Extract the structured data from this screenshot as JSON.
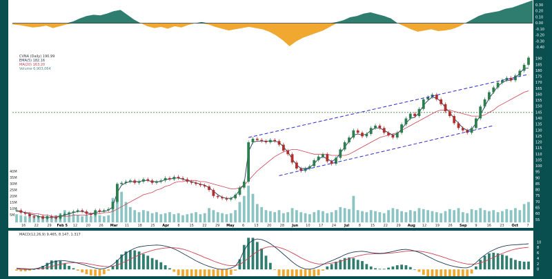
{
  "colors": {
    "frame": "#0a4f4f",
    "panel": "#ffffff",
    "oscPos": "#2e7d6e",
    "oscNeg": "#f0a830",
    "candleUp": "#2e7d4f",
    "candleDown": "#b03030",
    "ema": "#1f3a5a",
    "ma": "#d04050",
    "channel": "#2a2ad0",
    "volume": "#78b8b8",
    "macdLine": "#1f3a5a",
    "signalLine": "#d04050",
    "histPos": "#2e7d6e",
    "histNeg": "#f0a830"
  },
  "chart_data": [
    {
      "panel": "oscillator",
      "type": "area",
      "ylim": [
        -0.45,
        0.35
      ],
      "yticks": [
        "0.30",
        "0.20",
        "0.10",
        "0.00",
        "-0.10",
        "-0.20",
        "-0.30",
        "-0.40"
      ],
      "values": [
        -0.02,
        -0.03,
        -0.05,
        -0.07,
        -0.06,
        -0.04,
        -0.08,
        -0.05,
        -0.02,
        0.03,
        0.08,
        0.12,
        0.14,
        0.13,
        0.16,
        0.2,
        0.22,
        0.14,
        0.06,
        0.0,
        -0.05,
        -0.08,
        -0.06,
        -0.09,
        -0.05,
        -0.07,
        -0.03,
        0.0,
        0.02,
        -0.02,
        -0.06,
        -0.09,
        -0.12,
        -0.1,
        -0.08,
        -0.06,
        -0.08,
        -0.1,
        -0.14,
        -0.2,
        -0.28,
        -0.38,
        -0.3,
        -0.24,
        -0.2,
        -0.16,
        -0.12,
        -0.06,
        0.02,
        0.05,
        0.1,
        0.12,
        0.16,
        0.18,
        0.15,
        0.12,
        0.08,
        0.0,
        -0.05,
        -0.1,
        -0.14,
        -0.12,
        -0.1,
        -0.13,
        -0.12,
        -0.1,
        -0.06,
        0.0,
        0.06,
        0.12,
        0.16,
        0.18,
        0.2,
        0.24,
        0.26,
        0.3,
        0.34,
        0.38
      ]
    },
    {
      "panel": "price",
      "type": "candlestick",
      "legend": [
        "CVNA (Daily) 190.99",
        "EMA(5) 182.16",
        "MA(20) 163.20",
        "Volume 6,903,064"
      ],
      "ylim": [
        54,
        193
      ],
      "yticks": [
        "190",
        "185",
        "180",
        "175",
        "170",
        "165",
        "160",
        "155",
        "150",
        "145",
        "140",
        "135",
        "130",
        "125",
        "120",
        "115",
        "110",
        "105",
        "100",
        "95",
        "90",
        "85",
        "80",
        "75",
        "70",
        "65",
        "60",
        "55"
      ],
      "volume_ticks": [
        "40M",
        "35M",
        "30M",
        "25M",
        "20M",
        "15M",
        "10M",
        "5M"
      ],
      "x_labels": [
        "16",
        "22",
        "29",
        "Feb 5",
        "12",
        "20",
        "26",
        "Mar",
        "11",
        "18",
        "25",
        "Apr",
        "8",
        "15",
        "22",
        "29",
        "May",
        "6",
        "13",
        "20",
        "28",
        "Jun",
        "10",
        "17",
        "24",
        "Jul",
        "8",
        "15",
        "22",
        "29",
        "Aug",
        "12",
        "19",
        "26",
        "Sep",
        "9",
        "16",
        "23",
        "Oct",
        "7"
      ],
      "x_label_kinds": [
        "d",
        "d",
        "d",
        "m",
        "d",
        "d",
        "d",
        "m",
        "d",
        "d",
        "d",
        "m",
        "d",
        "d",
        "d",
        "d",
        "m",
        "d",
        "d",
        "d",
        "d",
        "m",
        "d",
        "d",
        "d",
        "m",
        "d",
        "d",
        "d",
        "d",
        "m",
        "d",
        "d",
        "d",
        "m",
        "d",
        "d",
        "d",
        "m",
        "d"
      ],
      "reference_level": 145,
      "closes": [
        63,
        61,
        60,
        58,
        57,
        58,
        56,
        58,
        57,
        56,
        59,
        60,
        61,
        62,
        63,
        62,
        60,
        59,
        63,
        62,
        63,
        64,
        70,
        85,
        86,
        87,
        88,
        86,
        87,
        89,
        88,
        86,
        87,
        88,
        90,
        89,
        91,
        90,
        89,
        87,
        86,
        85,
        84,
        83,
        80,
        75,
        74,
        73,
        72,
        73,
        76,
        82,
        87,
        120,
        123,
        122,
        121,
        120,
        122,
        121,
        118,
        113,
        110,
        103,
        98,
        96,
        98,
        100,
        105,
        108,
        110,
        104,
        102,
        107,
        114,
        120,
        124,
        130,
        128,
        125,
        127,
        132,
        134,
        132,
        128,
        126,
        124,
        128,
        135,
        140,
        144,
        142,
        148,
        156,
        158,
        160,
        156,
        152,
        146,
        142,
        136,
        132,
        130,
        128,
        132,
        140,
        150,
        156,
        162,
        166,
        170,
        172,
        174,
        172,
        176,
        180,
        185,
        190.99
      ],
      "ema5": [
        63,
        62,
        61,
        60,
        59,
        58,
        57,
        57,
        57,
        57,
        58,
        59,
        60,
        61,
        62,
        62,
        61,
        60,
        61,
        62,
        62,
        63,
        66,
        78,
        84,
        86,
        87,
        87,
        87,
        88,
        88,
        87,
        87,
        87,
        89,
        89,
        90,
        90,
        89,
        88,
        87,
        86,
        85,
        84,
        82,
        79,
        76,
        74,
        73,
        73,
        75,
        80,
        85,
        112,
        120,
        121,
        121,
        121,
        121,
        121,
        120,
        116,
        112,
        106,
        101,
        98,
        98,
        99,
        102,
        106,
        108,
        106,
        104,
        106,
        111,
        116,
        121,
        126,
        127,
        126,
        127,
        130,
        132,
        132,
        130,
        128,
        126,
        127,
        131,
        136,
        140,
        141,
        145,
        151,
        155,
        158,
        157,
        154,
        149,
        145,
        140,
        136,
        132,
        130,
        131,
        136,
        143,
        150,
        157,
        162,
        167,
        170,
        172,
        172,
        174,
        178,
        182,
        182.16
      ],
      "ma20": [
        62,
        62,
        61,
        61,
        60,
        60,
        59,
        59,
        58,
        58,
        58,
        58,
        58,
        59,
        59,
        59,
        59,
        60,
        60,
        60,
        61,
        61,
        62,
        64,
        66,
        68,
        70,
        72,
        74,
        76,
        77,
        78,
        80,
        81,
        83,
        84,
        86,
        87,
        87,
        88,
        88,
        88,
        87,
        87,
        86,
        85,
        84,
        83,
        82,
        81,
        81,
        82,
        84,
        88,
        92,
        96,
        99,
        102,
        105,
        108,
        110,
        112,
        113,
        114,
        114,
        113,
        112,
        111,
        110,
        110,
        110,
        110,
        109,
        109,
        109,
        109,
        110,
        112,
        114,
        116,
        118,
        120,
        122,
        124,
        125,
        126,
        127,
        128,
        130,
        132,
        134,
        136,
        138,
        140,
        142,
        144,
        146,
        147,
        147,
        147,
        146,
        145,
        144,
        143,
        142,
        142,
        142,
        143,
        145,
        147,
        150,
        152,
        154,
        156,
        158,
        160,
        162,
        163.2
      ],
      "volume_m": [
        8,
        7,
        6,
        6,
        5,
        6,
        5,
        6,
        5,
        7,
        9,
        12,
        10,
        8,
        7,
        6,
        7,
        6,
        8,
        7,
        6,
        7,
        24,
        38,
        30,
        20,
        15,
        12,
        10,
        12,
        11,
        9,
        10,
        8,
        9,
        10,
        8,
        9,
        7,
        8,
        9,
        10,
        8,
        9,
        14,
        12,
        10,
        9,
        8,
        9,
        12,
        20,
        26,
        36,
        28,
        18,
        15,
        12,
        11,
        10,
        12,
        9,
        10,
        14,
        12,
        10,
        9,
        8,
        10,
        12,
        11,
        9,
        10,
        12,
        15,
        14,
        13,
        26,
        12,
        11,
        10,
        12,
        11,
        10,
        9,
        12,
        14,
        13,
        11,
        10,
        12,
        11,
        14,
        13,
        12,
        11,
        10,
        9,
        11,
        13,
        12,
        14,
        10,
        9,
        13,
        12,
        14,
        12,
        11,
        12,
        10,
        11,
        13,
        12,
        14,
        12,
        18,
        20
      ]
    },
    {
      "panel": "macd",
      "type": "line",
      "legend": "MACD(12,26,9) 9.465, 8.147, 1.317",
      "ylim": [
        -2,
        12
      ],
      "yticks": [
        "10",
        "8",
        "6",
        "4",
        "2",
        "0"
      ],
      "macd": [
        0.3,
        0.1,
        0.0,
        0.0,
        0.2,
        0.5,
        1.0,
        1.8,
        2.6,
        3.0,
        3.3,
        3.2,
        3.0,
        2.7,
        2.3,
        1.9,
        1.4,
        0.9,
        0.5,
        0.2,
        0.3,
        0.8,
        1.8,
        3.2,
        4.8,
        6.0,
        7.0,
        7.8,
        8.3,
        8.6,
        8.8,
        8.9,
        9.0,
        8.9,
        8.6,
        8.2,
        7.6,
        6.8,
        5.9,
        5.0,
        4.1,
        3.2,
        2.4,
        1.7,
        1.1,
        0.6,
        0.2,
        0.0,
        0.1,
        0.5,
        1.2,
        3.5,
        7.0,
        9.5,
        10.8,
        11.2,
        11.0,
        10.4,
        9.5,
        8.3,
        7.0,
        5.6,
        4.2,
        2.8,
        1.6,
        0.7,
        0.2,
        0.1,
        0.4,
        1.0,
        1.8,
        2.6,
        3.2,
        3.9,
        4.6,
        5.4,
        6.0,
        6.4,
        6.6,
        6.7,
        6.5,
        6.2,
        6.0,
        5.9,
        6.0,
        6.3,
        6.6,
        7.0,
        7.3,
        7.4,
        7.2,
        6.8,
        6.3,
        5.6,
        4.8,
        4.0,
        3.2,
        2.6,
        2.0,
        1.5,
        1.1,
        0.8,
        0.6,
        0.6,
        1.2,
        2.5,
        4.0,
        5.3,
        6.4,
        7.2,
        7.9,
        8.4,
        8.8,
        9.0,
        9.1,
        9.2,
        9.3,
        9.465
      ],
      "signal": [
        0.5,
        0.4,
        0.3,
        0.2,
        0.2,
        0.3,
        0.4,
        0.7,
        1.1,
        1.5,
        1.9,
        2.2,
        2.4,
        2.5,
        2.5,
        2.4,
        2.2,
        1.9,
        1.6,
        1.3,
        1.1,
        1.0,
        1.2,
        1.6,
        2.3,
        3.0,
        3.8,
        4.6,
        5.3,
        6.0,
        6.5,
        7.0,
        7.4,
        7.7,
        7.9,
        8.0,
        8.0,
        7.8,
        7.5,
        7.0,
        6.4,
        5.8,
        5.1,
        4.4,
        3.8,
        3.1,
        2.5,
        2.0,
        1.6,
        1.4,
        1.4,
        1.8,
        2.9,
        4.2,
        5.5,
        6.6,
        7.5,
        8.1,
        8.4,
        8.4,
        8.1,
        7.6,
        6.9,
        6.1,
        5.2,
        4.3,
        3.5,
        2.8,
        2.3,
        2.0,
        2.0,
        2.1,
        2.3,
        2.6,
        3.0,
        3.5,
        4.0,
        4.5,
        5.0,
        5.3,
        5.6,
        5.7,
        5.8,
        5.8,
        5.9,
        6.0,
        6.1,
        6.3,
        6.5,
        6.7,
        6.8,
        6.8,
        6.7,
        6.5,
        6.2,
        5.8,
        5.3,
        4.8,
        4.3,
        3.7,
        3.2,
        2.7,
        2.3,
        2.0,
        1.9,
        2.0,
        2.4,
        3.0,
        3.7,
        4.4,
        5.2,
        5.9,
        6.5,
        7.1,
        7.5,
        7.8,
        8.0,
        8.147
      ]
    }
  ]
}
